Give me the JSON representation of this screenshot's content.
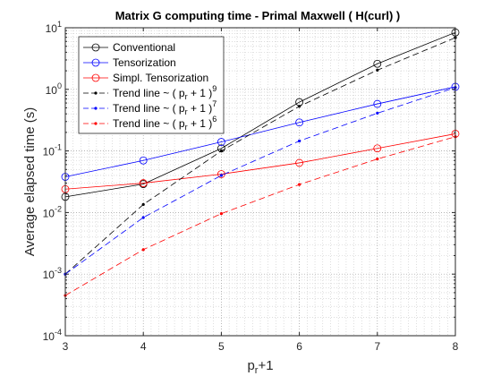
{
  "chart_data": {
    "type": "line",
    "title": "Matrix G computing time - Primal Maxwell ( H(curl) )",
    "xlabel": "p_r+1",
    "ylabel": "Average elapsed time (s)",
    "xlim": [
      3,
      8
    ],
    "ylim": [
      0.0001,
      10
    ],
    "yscale": "log",
    "grid": true,
    "legend_position": "top-left",
    "x_ticks": [
      3,
      4,
      5,
      6,
      7,
      8
    ],
    "y_ticks": [
      {
        "value": 0.0001,
        "base": "10",
        "exp": "-4"
      },
      {
        "value": 0.001,
        "base": "10",
        "exp": "-3"
      },
      {
        "value": 0.01,
        "base": "10",
        "exp": "-2"
      },
      {
        "value": 0.1,
        "base": "10",
        "exp": "-1"
      },
      {
        "value": 1,
        "base": "10",
        "exp": "0"
      },
      {
        "value": 10,
        "base": "10",
        "exp": "1"
      }
    ],
    "x": [
      3,
      4,
      5,
      6,
      7,
      8
    ],
    "series": [
      {
        "name": "Conventional",
        "color": "#000000",
        "style": "solid",
        "marker": "circle",
        "values": [
          0.018,
          0.029,
          0.11,
          0.62,
          2.6,
          8.4
        ]
      },
      {
        "name": "Tensorization",
        "color": "#0000ff",
        "style": "solid",
        "marker": "circle",
        "values": [
          0.038,
          0.07,
          0.14,
          0.29,
          0.58,
          1.1
        ]
      },
      {
        "name": "Simpl. Tensorization",
        "color": "#ff0000",
        "style": "solid",
        "marker": "circle",
        "values": [
          0.024,
          0.03,
          0.042,
          0.064,
          0.11,
          0.19
        ]
      },
      {
        "name": "Trend line ~ ( p",
        "sub": "r",
        "tail": " + 1 )",
        "sup": "9",
        "color": "#000000",
        "style": "dashed",
        "marker": "point",
        "values": [
          0.001,
          0.0135,
          0.1,
          0.53,
          2.05,
          6.9
        ]
      },
      {
        "name": "Trend line ~ ( p",
        "sub": "r",
        "tail": " + 1 )",
        "sup": "7",
        "color": "#0000ff",
        "style": "dashed",
        "marker": "point",
        "values": [
          0.001,
          0.0083,
          0.04,
          0.145,
          0.41,
          1.07
        ]
      },
      {
        "name": "Trend line ~ ( p",
        "sub": "r",
        "tail": " + 1 )",
        "sup": "6",
        "color": "#ff0000",
        "style": "dashed",
        "marker": "point",
        "values": [
          0.00045,
          0.0025,
          0.0096,
          0.0285,
          0.074,
          0.17
        ]
      }
    ]
  }
}
